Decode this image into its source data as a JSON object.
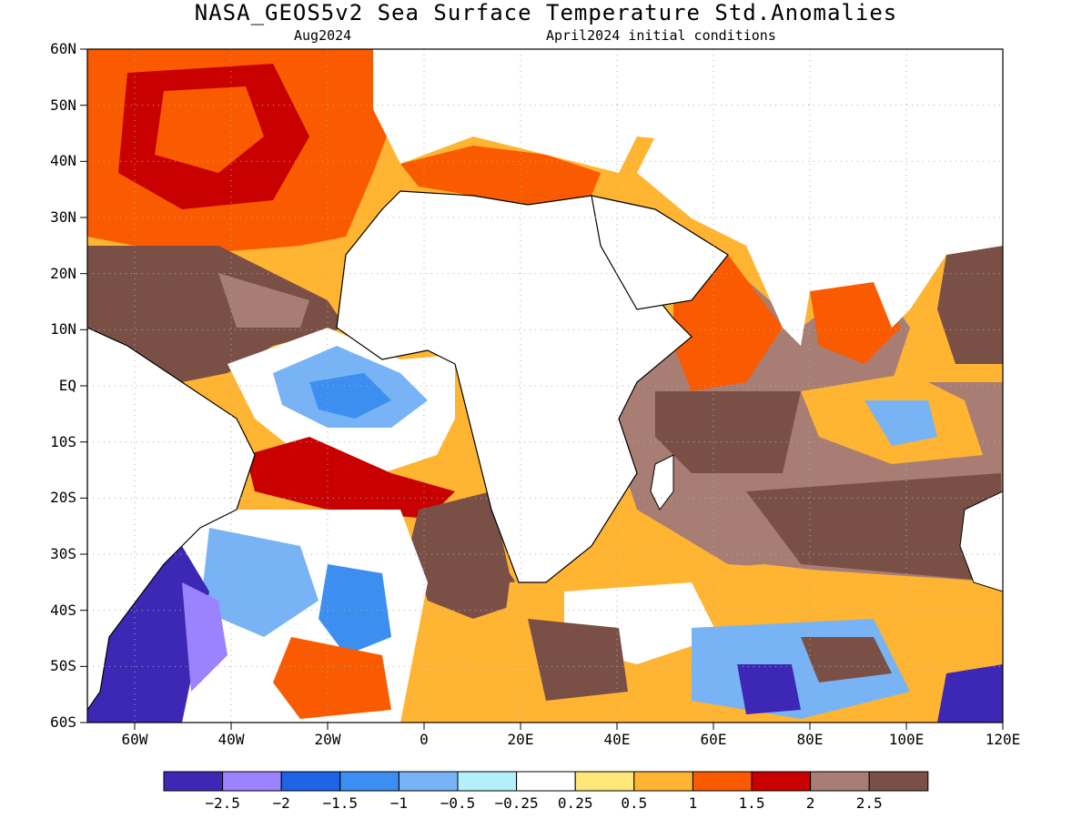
{
  "title": "NASA_GEOS5v2 Sea Surface Temperature Std.Anomalies",
  "subtitle_left": "Aug2024",
  "subtitle_right": "April2024 initial conditions",
  "lat_labels": [
    "60N",
    "50N",
    "40N",
    "30N",
    "20N",
    "10N",
    "EQ",
    "10S",
    "20S",
    "30S",
    "40S",
    "50S",
    "60S"
  ],
  "lon_labels": [
    "60W",
    "40W",
    "20W",
    "0",
    "20E",
    "40E",
    "60E",
    "80E",
    "100E",
    "120E"
  ],
  "colorbar": {
    "colors": [
      "#3c28b4",
      "#9b82ff",
      "#1e64e6",
      "#3c8ff0",
      "#78b4f5",
      "#b4f0fa",
      "#ffffff",
      "#ffe678",
      "#ffb432",
      "#fa5a00",
      "#c80000",
      "#a87e74",
      "#7a5046"
    ],
    "labels": [
      "−2.5",
      "−2",
      "−1.5",
      "−1",
      "−0.5",
      "−0.25",
      "0.25",
      "0.5",
      "1",
      "1.5",
      "2",
      "2.5"
    ]
  }
}
